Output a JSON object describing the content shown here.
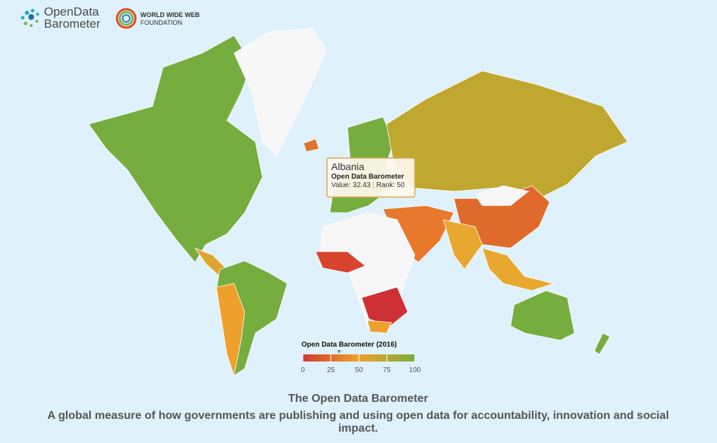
{
  "header": {
    "brand_line1": "OpenData",
    "brand_line2": "Barometer",
    "partner_line1": "WORLD WIDE WEB",
    "partner_line2": "FOUNDATION"
  },
  "tooltip": {
    "country": "Albania",
    "indicator": "Open Data Barometer",
    "value_label": "Value:",
    "value": 32.43,
    "separator": "|",
    "rank_label": "Rank:",
    "rank": 50
  },
  "legend": {
    "title": "Open Data Barometer (2016)",
    "range": [
      0,
      100
    ],
    "ticks": [
      0,
      25,
      50,
      75,
      100
    ],
    "colors": [
      "#d23a34",
      "#f0a02a",
      "#7aae3b"
    ]
  },
  "footer": {
    "title": "The Open Data Barometer",
    "subtitle": "A global measure of how governments are publishing and using open data for accountability, innovation and social impact."
  }
}
